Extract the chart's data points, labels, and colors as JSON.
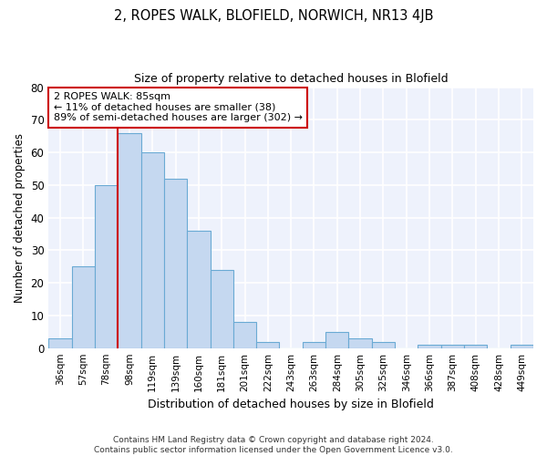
{
  "title": "2, ROPES WALK, BLOFIELD, NORWICH, NR13 4JB",
  "subtitle": "Size of property relative to detached houses in Blofield",
  "xlabel": "Distribution of detached houses by size in Blofield",
  "ylabel": "Number of detached properties",
  "categories": [
    "36sqm",
    "57sqm",
    "78sqm",
    "98sqm",
    "119sqm",
    "139sqm",
    "160sqm",
    "181sqm",
    "201sqm",
    "222sqm",
    "243sqm",
    "263sqm",
    "284sqm",
    "305sqm",
    "325sqm",
    "346sqm",
    "366sqm",
    "387sqm",
    "408sqm",
    "428sqm",
    "449sqm"
  ],
  "values": [
    3,
    25,
    50,
    66,
    60,
    52,
    36,
    24,
    8,
    2,
    0,
    2,
    5,
    3,
    2,
    0,
    1,
    1,
    1,
    0,
    1
  ],
  "bar_color": "#c5d8f0",
  "bar_edge_color": "#6aaad4",
  "background_color": "#ffffff",
  "plot_bg_color": "#eef2fc",
  "grid_color": "#ffffff",
  "vline_x": 2.5,
  "vline_color": "#cc0000",
  "annotation_text": "2 ROPES WALK: 85sqm\n← 11% of detached houses are smaller (38)\n89% of semi-detached houses are larger (302) →",
  "annotation_box_color": "#ffffff",
  "annotation_box_edge": "#cc0000",
  "ylim": [
    0,
    80
  ],
  "yticks": [
    0,
    10,
    20,
    30,
    40,
    50,
    60,
    70,
    80
  ],
  "footnote": "Contains HM Land Registry data © Crown copyright and database right 2024.\nContains public sector information licensed under the Open Government Licence v3.0."
}
